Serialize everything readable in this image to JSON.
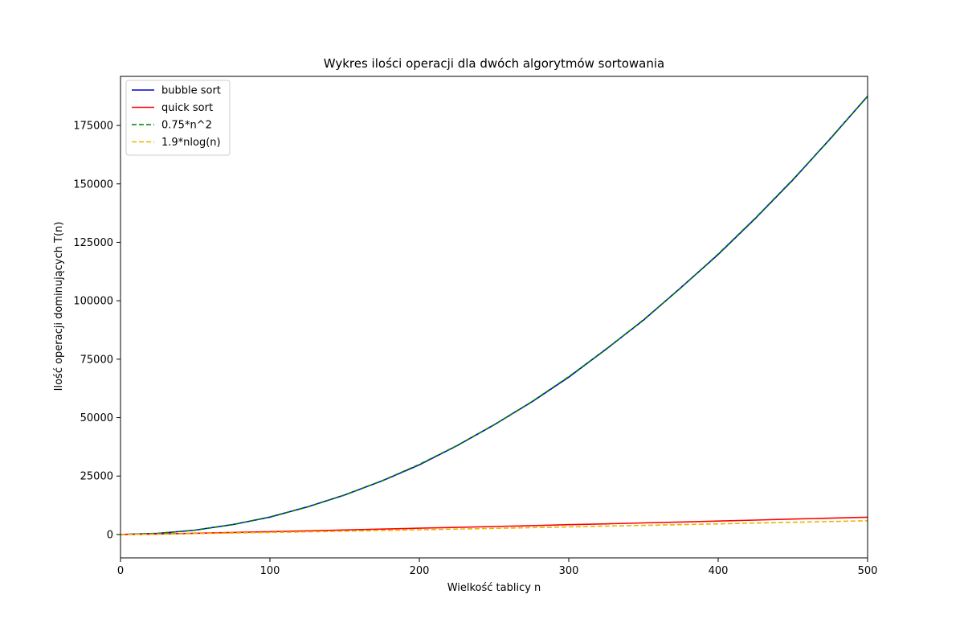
{
  "chart_data": {
    "type": "line",
    "title": "Wykres ilości operacji dla dwóch algorytmów sortowania",
    "xlabel": "Wielkość tablicy n",
    "ylabel": "Ilość operacji dominujących T(n)",
    "xlim": [
      0,
      500
    ],
    "ylim": [
      -10000,
      196000
    ],
    "xticks": [
      0,
      100,
      200,
      300,
      400,
      500
    ],
    "yticks": [
      0,
      25000,
      50000,
      75000,
      100000,
      125000,
      150000,
      175000
    ],
    "grid": false,
    "legend_position": "top-left",
    "x": [
      0,
      25,
      50,
      75,
      100,
      125,
      150,
      175,
      200,
      225,
      250,
      275,
      300,
      325,
      350,
      375,
      400,
      425,
      450,
      475,
      500
    ],
    "series": [
      {
        "name": "bubble sort",
        "color": "#0000cc",
        "style": "solid",
        "values": [
          0,
          450,
          1850,
          4250,
          7450,
          11800,
          16900,
          22900,
          29800,
          37900,
          46900,
          56600,
          67300,
          79300,
          91700,
          105600,
          119800,
          135300,
          151700,
          169300,
          187500
        ]
      },
      {
        "name": "quick sort",
        "color": "#ff0000",
        "style": "solid",
        "values": [
          0,
          200,
          520,
          870,
          1200,
          1550,
          1950,
          2300,
          2700,
          3050,
          3400,
          3800,
          4200,
          4550,
          4950,
          5350,
          5750,
          6150,
          6600,
          7000,
          7400
        ]
      },
      {
        "name": "0.75*n^2",
        "color": "#008000",
        "style": "dashed",
        "values": [
          0,
          469,
          1875,
          4219,
          7500,
          11719,
          16875,
          22969,
          30000,
          37969,
          46875,
          56719,
          67500,
          79219,
          91875,
          105469,
          120000,
          135469,
          151875,
          169219,
          187500
        ]
      },
      {
        "name": "1.9*nlog(n)",
        "color": "#e6b800",
        "style": "dashed",
        "values": [
          0,
          153,
          372,
          615,
          875,
          1146,
          1428,
          1718,
          2013,
          2316,
          2623,
          2933,
          3251,
          3570,
          3894,
          4222,
          4550,
          4884,
          5218,
          5557,
          5901
        ]
      }
    ]
  }
}
